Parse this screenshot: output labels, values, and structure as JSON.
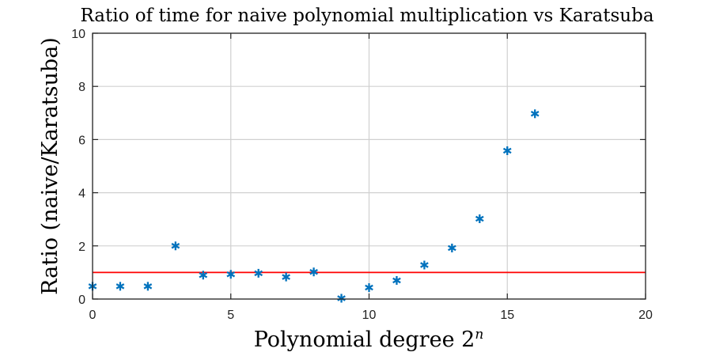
{
  "chart_data": {
    "type": "scatter",
    "title": "Ratio of time for naive polynomial multiplication vs Karatsuba",
    "xlabel_text": "Polynomial degree 2",
    "xlabel_superscript": "n",
    "ylabel": "Ratio (naive/Karatsuba)",
    "xlim": [
      0,
      20
    ],
    "ylim": [
      0,
      10
    ],
    "xticks": [
      0,
      5,
      10,
      15,
      20
    ],
    "yticks": [
      0,
      2,
      4,
      6,
      8,
      10
    ],
    "xtick_labels": [
      "0",
      "5",
      "10",
      "15",
      "20"
    ],
    "ytick_labels": [
      "0",
      "2",
      "4",
      "6",
      "8",
      "10"
    ],
    "grid": true,
    "marker": "asterisk",
    "marker_color": "#0072BD",
    "reference_line": {
      "y": 1,
      "color": "#FF0000"
    },
    "series": [
      {
        "x": [
          0,
          1,
          2,
          3,
          4,
          5,
          6,
          7,
          8,
          9,
          10,
          11,
          12,
          13,
          14,
          15,
          16
        ],
        "y": [
          0.48,
          0.48,
          0.48,
          2.0,
          0.9,
          0.93,
          0.97,
          0.83,
          1.02,
          0.03,
          0.43,
          0.7,
          1.28,
          1.92,
          3.02,
          5.58,
          6.97
        ]
      }
    ]
  }
}
